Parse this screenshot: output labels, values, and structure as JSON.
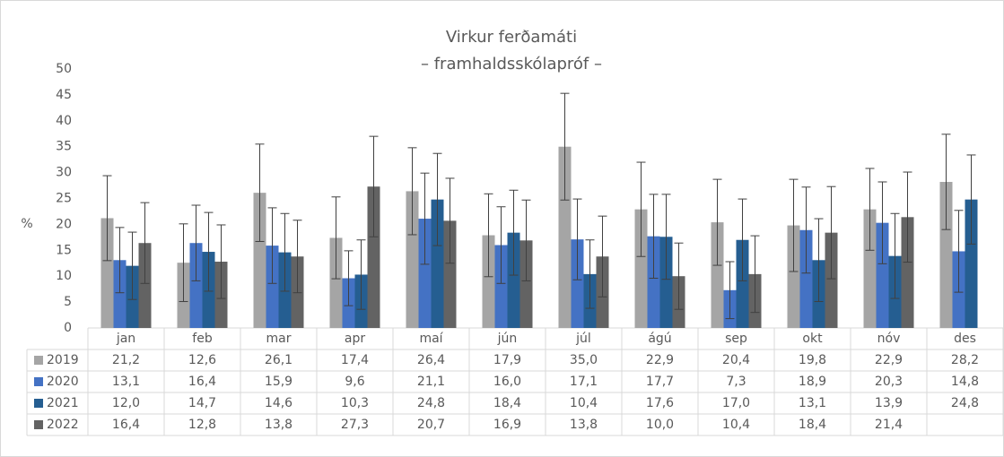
{
  "chart_data": {
    "type": "bar",
    "title": "Virkur ferðamáti",
    "subtitle": "– framhaldsskólapróf –",
    "y_label": "%",
    "categories": [
      "jan",
      "feb",
      "mar",
      "apr",
      "maí",
      "jún",
      "júl",
      "ágú",
      "sep",
      "okt",
      "nóv",
      "des"
    ],
    "ylim": [
      0,
      50
    ],
    "yticks": [
      0,
      5,
      10,
      15,
      20,
      25,
      30,
      35,
      40,
      45,
      50
    ],
    "series": [
      {
        "name": "2019",
        "color": "#a5a5a5",
        "values": [
          21.2,
          12.6,
          26.1,
          17.4,
          26.4,
          17.9,
          35.0,
          22.9,
          20.4,
          19.8,
          22.9,
          28.2
        ],
        "value_labels": [
          "21,2",
          "12,6",
          "26,1",
          "17,4",
          "26,4",
          "17,9",
          "35,0",
          "22,9",
          "20,4",
          "19,8",
          "22,9",
          "28,2"
        ],
        "errors": [
          8.2,
          7.5,
          9.4,
          7.9,
          8.4,
          8.0,
          10.3,
          9.1,
          8.3,
          8.9,
          7.9,
          9.2
        ]
      },
      {
        "name": "2020",
        "color": "#4472c4",
        "values": [
          13.1,
          16.4,
          15.9,
          9.6,
          21.1,
          16.0,
          17.1,
          17.7,
          7.3,
          18.9,
          20.3,
          14.8
        ],
        "value_labels": [
          "13,1",
          "16,4",
          "15,9",
          "9,6",
          "21,1",
          "16,0",
          "17,1",
          "17,7",
          "7,3",
          "18,9",
          "20,3",
          "14,8"
        ],
        "errors": [
          6.3,
          7.3,
          7.3,
          5.3,
          8.8,
          7.4,
          7.8,
          8.1,
          5.5,
          8.3,
          7.9,
          7.9
        ]
      },
      {
        "name": "2021",
        "color": "#255e91",
        "values": [
          12.0,
          14.7,
          14.6,
          10.3,
          24.8,
          18.4,
          10.4,
          17.6,
          17.0,
          13.1,
          13.9,
          24.8
        ],
        "value_labels": [
          "12,0",
          "14,7",
          "14,6",
          "10,3",
          "24,8",
          "18,4",
          "10,4",
          "17,6",
          "17,0",
          "13,1",
          "13,9",
          "24,8"
        ],
        "errors": [
          6.5,
          7.6,
          7.5,
          6.7,
          8.9,
          8.2,
          6.6,
          8.2,
          7.9,
          8.0,
          8.2,
          8.6
        ]
      },
      {
        "name": "2022",
        "color": "#636363",
        "values": [
          16.4,
          12.8,
          13.8,
          27.3,
          20.7,
          16.9,
          13.8,
          10.0,
          10.4,
          18.4,
          21.4,
          null
        ],
        "value_labels": [
          "16,4",
          "12,8",
          "13,8",
          "27,3",
          "20,7",
          "16,9",
          "13,8",
          "10,0",
          "10,4",
          "18,4",
          "21,4",
          null
        ],
        "errors": [
          7.8,
          7.1,
          7.0,
          9.7,
          8.2,
          7.8,
          7.8,
          6.4,
          7.4,
          8.9,
          8.7,
          null
        ]
      }
    ]
  }
}
